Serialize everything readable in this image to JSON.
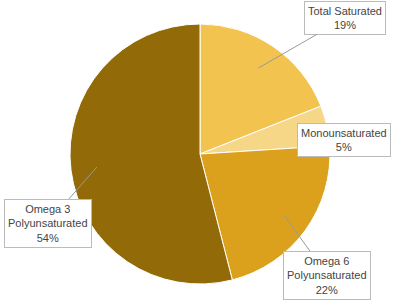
{
  "chart_data": {
    "type": "pie",
    "categories": [
      "Total Saturated",
      "Monounsaturated",
      "Omega 6 Polyunsaturated",
      "Omega 3 Polyunsaturated"
    ],
    "values": [
      19,
      5,
      22,
      54
    ],
    "value_labels": [
      "19%",
      "5%",
      "22%",
      "54%"
    ],
    "colors": [
      "#f2c44f",
      "#f6d687",
      "#dba11c",
      "#936a08"
    ],
    "data_labels": true
  }
}
